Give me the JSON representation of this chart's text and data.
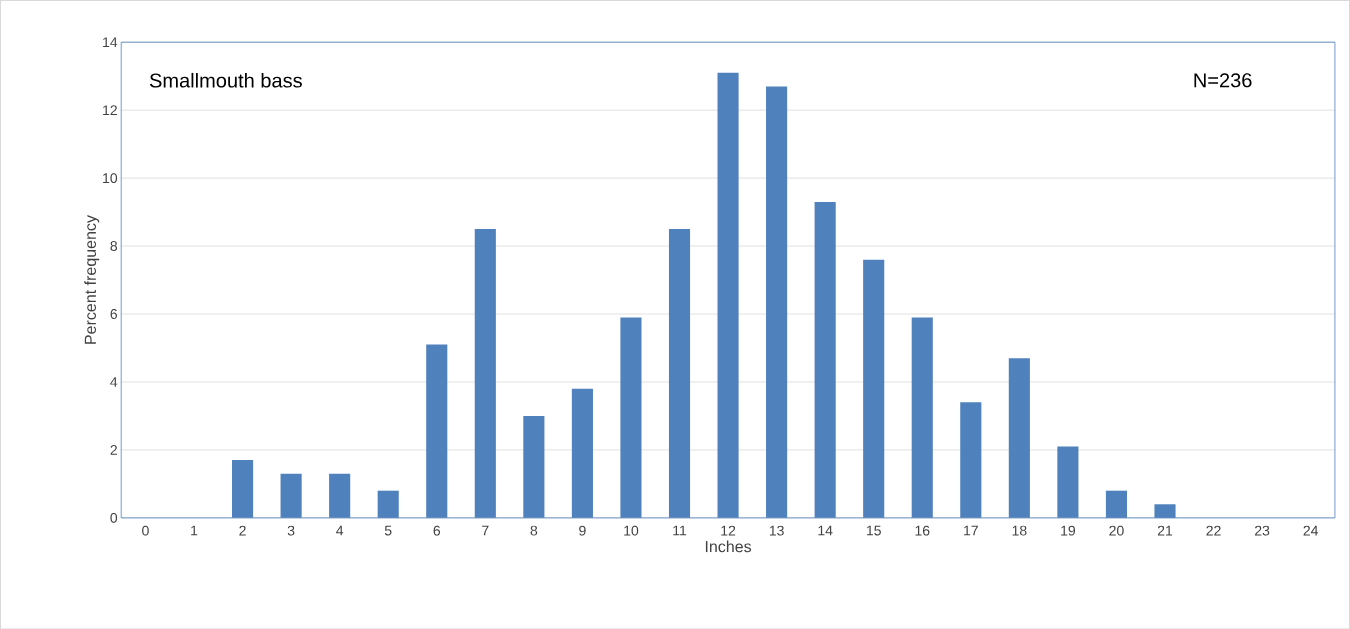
{
  "chart_data": {
    "type": "bar",
    "xlabel": "Inches",
    "ylabel": "Percent frequency",
    "categories": [
      "0",
      "1",
      "2",
      "3",
      "4",
      "5",
      "6",
      "7",
      "8",
      "9",
      "10",
      "11",
      "12",
      "13",
      "14",
      "15",
      "16",
      "17",
      "18",
      "19",
      "20",
      "21",
      "22",
      "23",
      "24"
    ],
    "values": [
      0,
      0,
      1.7,
      1.3,
      1.3,
      0.8,
      5.1,
      8.5,
      3.0,
      3.8,
      5.9,
      8.5,
      13.1,
      12.7,
      9.3,
      7.6,
      5.9,
      3.4,
      4.7,
      2.1,
      0.8,
      0.4,
      0,
      0,
      0
    ],
    "color": "#4f81bd",
    "ylim": [
      0,
      14
    ],
    "yticks": [
      0,
      2,
      4,
      6,
      8,
      10,
      12,
      14
    ],
    "grid": "y",
    "annotations": [
      "Smallmouth bass",
      "N=236"
    ]
  }
}
